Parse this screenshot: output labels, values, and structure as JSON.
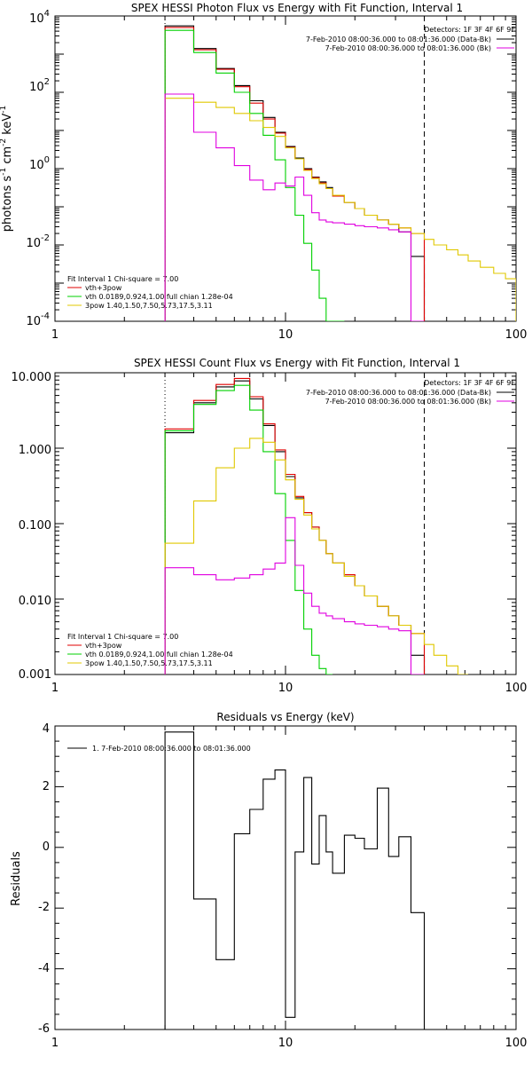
{
  "chart_data": [
    {
      "type": "line",
      "title": "SPEX HESSI Photon Flux vs Energy with Fit Function, Interval 1",
      "xlabel": "",
      "ylabel": "photons s-1 cm-2 keV-1",
      "ylabel_parts": {
        "photons": "photons s",
        "e1": "-1",
        "cm": " cm",
        "e2": "-2",
        "kev": " keV",
        "e3": "-1"
      },
      "xscale": "log",
      "yscale": "log",
      "xlim": [
        1,
        100
      ],
      "ylim": [
        0.0001,
        10000
      ],
      "x_tick_labels": [
        "1",
        "10",
        "100"
      ],
      "y_tick_labels": [
        {
          "base": "10",
          "exp": "-4"
        },
        {
          "base": "10",
          "exp": "-2"
        },
        {
          "base": "10",
          "exp": "0"
        },
        {
          "base": "10",
          "exp": "2"
        },
        {
          "base": "10",
          "exp": "4"
        }
      ],
      "legend_top_right": {
        "detectors": "Detectors: 1F 3F 4F 6F 9F",
        "entries": [
          {
            "text": "7-Feb-2010 08:00:36.000 to 08:01:36.000 (Data-Bk)",
            "color": "#000000"
          },
          {
            "text": "7-Feb-2010 08:00:36.000 to 08:01:36.000 (Bk)",
            "color": "#e000e0"
          }
        ]
      },
      "legend_bottom_left": {
        "header": "Fit Interval 1   Chi-square = 7.00",
        "entries": [
          {
            "text": "vth+3pow",
            "color": "#e00000"
          },
          {
            "text": "vth 0.0189,0.924,1.00  full chian 1.28e-04",
            "color": "#00d000"
          },
          {
            "text": "3pow 1.40,1.50,7.50,5.73,17.5,3.11",
            "color": "#e0c800"
          }
        ]
      },
      "vlines": [
        {
          "x": 3,
          "style": "dotted",
          "color": "#000000"
        },
        {
          "x": 40,
          "style": "dashed",
          "color": "#000000"
        }
      ],
      "bin_edges": [
        3,
        4,
        5,
        6,
        7,
        8,
        9,
        10,
        11,
        12,
        13,
        14,
        15,
        16,
        18,
        20,
        22,
        25,
        28,
        31,
        35,
        40,
        44,
        50,
        56,
        62,
        70,
        80,
        90,
        100
      ],
      "series": [
        {
          "name": "Data-Bk",
          "color": "#000000",
          "values": [
            5500,
            1400,
            420,
            150,
            60,
            22,
            9,
            3.8,
            1.9,
            1.0,
            0.6,
            0.45,
            0.32,
            0.2,
            0.13,
            0.09,
            0.06,
            0.045,
            0.035,
            0.022,
            0.005
          ]
        },
        {
          "name": "vth+3pow",
          "color": "#e00000",
          "values": [
            5000,
            1300,
            400,
            140,
            52,
            20,
            8.5,
            3.6,
            1.8,
            0.95,
            0.58,
            0.42,
            0.3,
            0.19,
            0.13,
            0.09,
            0.06,
            0.045,
            0.035,
            0.028,
            0.02
          ]
        },
        {
          "name": "vth",
          "color": "#00d000",
          "values": [
            4200,
            1100,
            320,
            100,
            28,
            7.5,
            1.7,
            0.32,
            0.06,
            0.011,
            0.0022,
            0.0004,
            0.0001,
            4e-05
          ]
        },
        {
          "name": "3pow",
          "color": "#e0c800",
          "values": [
            70,
            55,
            40,
            28,
            18,
            12,
            7,
            3.5,
            1.8,
            0.9,
            0.55,
            0.4,
            0.3,
            0.2,
            0.13,
            0.09,
            0.06,
            0.045,
            0.035,
            0.028,
            0.02,
            0.014,
            0.01,
            0.0075,
            0.0055,
            0.0038,
            0.0026,
            0.0018,
            0.0013
          ]
        },
        {
          "name": "Bk",
          "color": "#e000e0",
          "values": [
            90,
            9,
            3.5,
            1.2,
            0.5,
            0.28,
            0.42,
            0.35,
            0.6,
            0.2,
            0.07,
            0.045,
            0.04,
            0.038,
            0.035,
            0.032,
            0.03,
            0.028,
            0.025,
            0.022,
            0.0001
          ]
        }
      ]
    },
    {
      "type": "line",
      "title": "SPEX HESSI Count Flux vs Energy with Fit Function, Interval 1",
      "xlabel": "",
      "ylabel": "",
      "xscale": "log",
      "yscale": "log",
      "xlim": [
        1,
        100
      ],
      "ylim": [
        0.001,
        10
      ],
      "x_tick_labels": [
        "1",
        "10",
        "100"
      ],
      "y_tick_labels": [
        "0.001",
        "0.010",
        "0.100",
        "1.000",
        "10.000"
      ],
      "legend_top_right": {
        "detectors": "Detectors: 1F 3F 4F 6F 9F",
        "entries": [
          {
            "text": "7-Feb-2010 08:00:36.000 to 08:01:36.000 (Data-Bk)",
            "color": "#000000"
          },
          {
            "text": "7-Feb-2010 08:00:36.000 to 08:01:36.000 (Bk)",
            "color": "#e000e0"
          }
        ]
      },
      "legend_bottom_left": {
        "header": "Fit Interval 1   Chi-square = 7.00",
        "entries": [
          {
            "text": "vth+3pow",
            "color": "#e00000"
          },
          {
            "text": "vth 0.0189,0.924,1.00  full chian 1.28e-04",
            "color": "#00d000"
          },
          {
            "text": "3pow 1.40,1.50,7.50,5.73,17.5,3.11",
            "color": "#e0c800"
          }
        ]
      },
      "vlines": [
        {
          "x": 3,
          "style": "dotted",
          "color": "#000000"
        },
        {
          "x": 40,
          "style": "dashed",
          "color": "#000000"
        }
      ],
      "bin_edges": [
        3,
        4,
        5,
        6,
        7,
        8,
        9,
        10,
        11,
        12,
        13,
        14,
        15,
        16,
        18,
        20,
        22,
        25,
        28,
        31,
        35,
        40,
        44,
        50,
        56,
        62,
        70,
        80,
        90,
        100
      ],
      "series": [
        {
          "name": "Data-Bk",
          "color": "#000000",
          "values": [
            1.6,
            4.0,
            6.5,
            7.8,
            4.5,
            2.0,
            0.9,
            0.42,
            0.22,
            0.14,
            0.09,
            0.06,
            0.04,
            0.03,
            0.02,
            0.015,
            0.011,
            0.008,
            0.006,
            0.0045,
            0.0018
          ]
        },
        {
          "name": "vth+3pow",
          "color": "#e00000",
          "values": [
            1.8,
            4.3,
            7.0,
            8.4,
            4.8,
            2.1,
            0.95,
            0.45,
            0.23,
            0.14,
            0.09,
            0.06,
            0.04,
            0.03,
            0.021,
            0.015,
            0.011,
            0.008,
            0.006,
            0.0045,
            0.0035
          ]
        },
        {
          "name": "vth",
          "color": "#00d000",
          "values": [
            1.7,
            3.8,
            5.8,
            6.8,
            3.2,
            0.9,
            0.25,
            0.06,
            0.013,
            0.004,
            0.0018,
            0.0012,
            0.0008
          ]
        },
        {
          "name": "3pow",
          "color": "#e0c800",
          "values": [
            0.055,
            0.2,
            0.55,
            1.0,
            1.35,
            1.2,
            0.7,
            0.38,
            0.21,
            0.13,
            0.085,
            0.06,
            0.04,
            0.03,
            0.02,
            0.015,
            0.011,
            0.008,
            0.006,
            0.0045,
            0.0035,
            0.0025,
            0.0018,
            0.0013,
            0.0009
          ]
        },
        {
          "name": "Bk",
          "color": "#e000e0",
          "values": [
            0.026,
            0.021,
            0.018,
            0.019,
            0.021,
            0.025,
            0.03,
            0.12,
            0.028,
            0.012,
            0.008,
            0.0065,
            0.006,
            0.0055,
            0.005,
            0.0047,
            0.0045,
            0.0043,
            0.004,
            0.0038,
            0.0005
          ]
        }
      ]
    },
    {
      "type": "line",
      "title": "Residuals vs Energy (keV)",
      "xlabel": "",
      "ylabel": "Residuals",
      "xscale": "log",
      "yscale": "linear",
      "xlim": [
        1,
        100
      ],
      "ylim": [
        -6,
        4
      ],
      "x_tick_labels": [
        "1",
        "10",
        "100"
      ],
      "y_tick_labels": [
        "-6",
        "-4",
        "-2",
        "0",
        "2",
        "4"
      ],
      "legend": [
        {
          "text": "1.  7-Feb-2010 08:00:36.000 to 08:01:36.000",
          "color": "#000000"
        }
      ],
      "bin_edges": [
        3,
        4,
        5,
        6,
        7,
        8,
        9,
        10,
        11,
        12,
        13,
        14,
        15,
        16,
        18,
        20,
        22,
        25,
        28,
        31,
        35,
        40
      ],
      "series": [
        {
          "name": "",
          "color": "#000000",
          "values": [
            3.8,
            -1.7,
            -3.7,
            0.45,
            1.25,
            2.25,
            2.55,
            -5.6,
            -0.15,
            2.3,
            -0.55,
            1.05,
            -0.15,
            -0.85,
            0.4,
            0.3,
            -0.05,
            1.95,
            -0.3,
            0.35,
            -2.15
          ]
        }
      ]
    }
  ]
}
